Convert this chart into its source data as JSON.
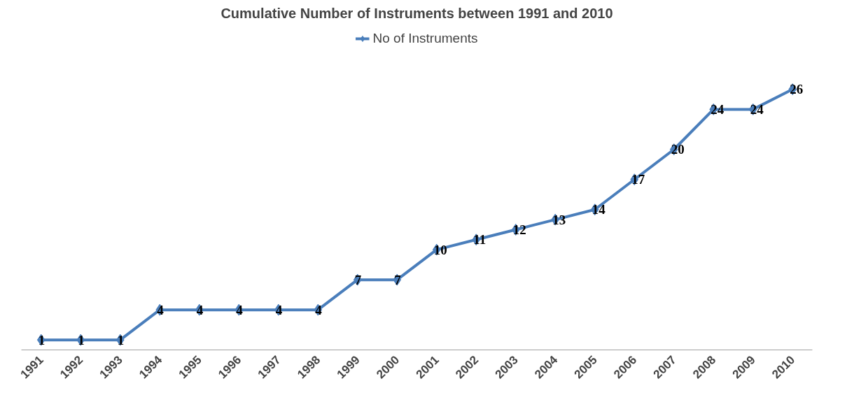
{
  "chart_data": {
    "type": "line",
    "title": "Cumulative Number of Instruments between 1991 and 2010",
    "categories": [
      "1991",
      "1992",
      "1993",
      "1994",
      "1995",
      "1996",
      "1997",
      "1998",
      "1999",
      "2000",
      "2001",
      "2002",
      "2003",
      "2004",
      "2005",
      "2006",
      "2007",
      "2008",
      "2009",
      "2010"
    ],
    "series": [
      {
        "name": "No of Instruments",
        "color": "#4a7ebb",
        "values": [
          1,
          1,
          1,
          4,
          4,
          4,
          4,
          4,
          7,
          7,
          10,
          11,
          12,
          13,
          14,
          17,
          20,
          24,
          24,
          26
        ]
      }
    ],
    "data_labels": true,
    "marker": "diamond",
    "line_style": "solid",
    "legend": "top"
  }
}
